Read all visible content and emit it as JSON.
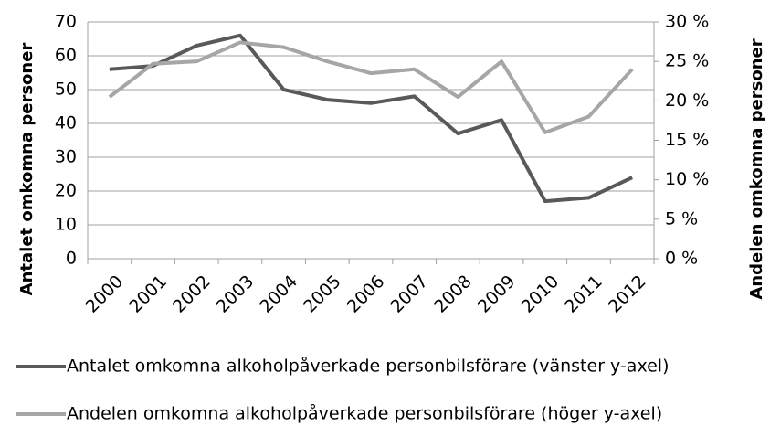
{
  "chart_data": {
    "type": "line",
    "y_label": "Antalet omkomna personer",
    "y2_label": "Andelen omkomna personer",
    "categories": [
      "2000",
      "2001",
      "2002",
      "2003",
      "2004",
      "2005",
      "2006",
      "2007",
      "2008",
      "2009",
      "2010",
      "2011",
      "2012"
    ],
    "series": [
      {
        "name": "Antalet omkomna alkoholpåverkade personbilsförare (vänster y-axel)",
        "color": "#595959",
        "values": [
          56,
          57,
          63,
          66,
          50,
          47,
          46,
          48,
          37,
          41,
          17,
          18,
          24
        ]
      },
      {
        "name": "Andelen omkomna alkoholpåverkade personbilsförare (höger y-axel)",
        "color": "#a6a6a6",
        "axis": "y2",
        "values": [
          20.5,
          24.7,
          25,
          27.4,
          26.8,
          25,
          23.5,
          24,
          20.5,
          25,
          16,
          18,
          24
        ]
      }
    ],
    "ylim": [
      0,
      70
    ],
    "yticks": [
      0,
      10,
      20,
      30,
      40,
      50,
      60,
      70
    ],
    "y2lim": [
      0,
      30
    ],
    "y2ticks": [
      {
        "value": 0,
        "label": "0 %"
      },
      {
        "value": 5,
        "label": "5 %"
      },
      {
        "value": 10,
        "label": "10 %"
      },
      {
        "value": 15,
        "label": "15 %"
      },
      {
        "value": 20,
        "label": "20 %"
      },
      {
        "value": 25,
        "label": "25 %"
      },
      {
        "value": 30,
        "label": "30 %"
      }
    ],
    "grid": true
  }
}
